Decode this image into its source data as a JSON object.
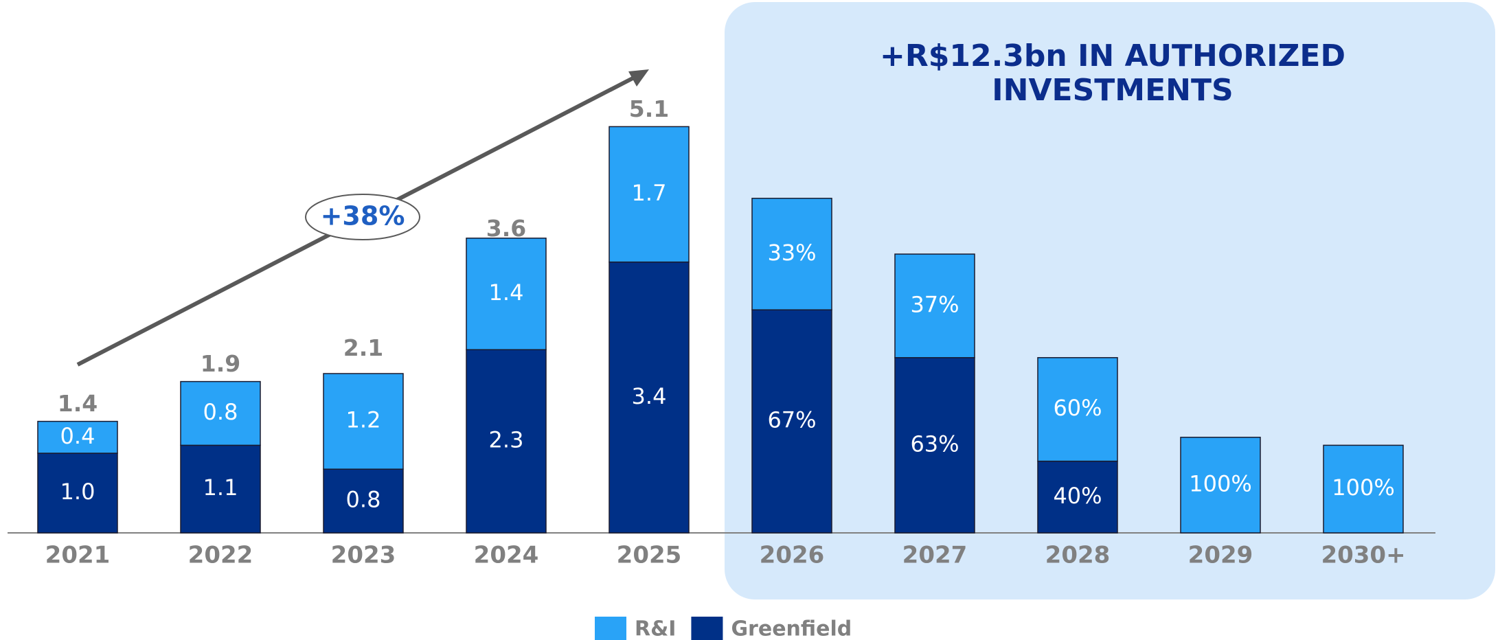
{
  "chart_data": {
    "type": "stacked-bar",
    "title_lines": [
      "+R$12.3bn IN AUTHORIZED",
      "INVESTMENTS"
    ],
    "annotation": "+38%",
    "highlight_from": "2026",
    "categories": [
      "2021",
      "2022",
      "2023",
      "2024",
      "2025",
      "2026",
      "2027",
      "2028",
      "2029",
      "2030+"
    ],
    "series": [
      {
        "name": "Greenfield",
        "color": "#003087",
        "values": [
          1.0,
          1.1,
          0.8,
          2.3,
          3.4,
          2.8,
          2.2,
          0.9,
          0,
          0
        ],
        "value_labels": [
          "1.0",
          "1.1",
          "0.8",
          "2.3",
          "3.4",
          null,
          null,
          null,
          null,
          null
        ],
        "shares": [
          null,
          null,
          null,
          null,
          null,
          67,
          63,
          40,
          null,
          null
        ],
        "share_labels": [
          null,
          null,
          null,
          null,
          null,
          "67%",
          "63%",
          "40%",
          null,
          null
        ]
      },
      {
        "name": "R&I",
        "color": "#29a3f7",
        "values": [
          0.4,
          0.8,
          1.2,
          1.4,
          1.7,
          1.4,
          1.3,
          1.3,
          1.2,
          1.1
        ],
        "value_labels": [
          "0.4",
          "0.8",
          "1.2",
          "1.4",
          "1.7",
          null,
          null,
          null,
          null,
          null
        ],
        "shares": [
          null,
          null,
          null,
          null,
          null,
          33,
          37,
          60,
          100,
          100
        ],
        "share_labels": [
          null,
          null,
          null,
          null,
          null,
          "33%",
          "37%",
          "60%",
          "100%",
          "100%"
        ]
      }
    ],
    "totals": [
      1.4,
      1.9,
      2.1,
      3.6,
      5.1,
      null,
      null,
      null,
      null,
      null
    ],
    "ylim": [
      0,
      6.5
    ],
    "legend": "bottom"
  }
}
